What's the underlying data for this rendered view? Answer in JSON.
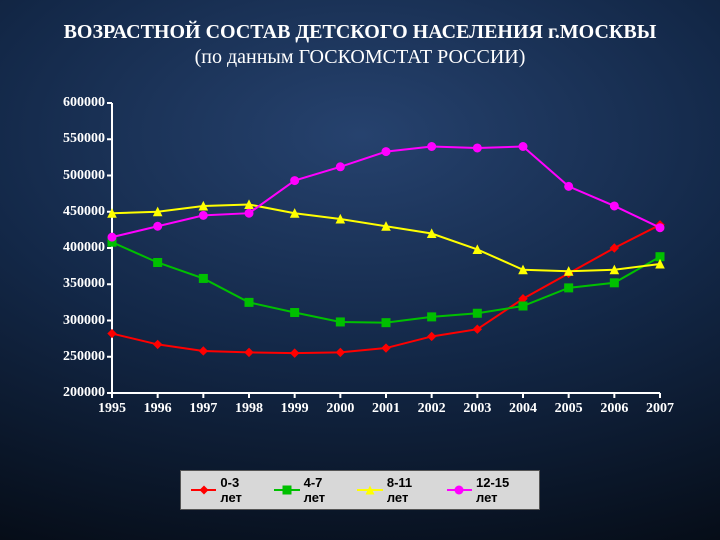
{
  "title_line1": "ВОЗРАСТНОЙ СОСТАВ ДЕТСКОГО НАСЕЛЕНИЯ г.МОСКВЫ",
  "title_line2": "(по данным ГОСКОМСТАТ РОССИИ)",
  "chart": {
    "type": "line",
    "background_color": "transparent",
    "axis_color": "#ffffff",
    "grid_on": false,
    "xlim": [
      1995,
      2007
    ],
    "ylim": [
      200000,
      600000
    ],
    "ytick_step": 50000,
    "y_ticks": [
      200000,
      250000,
      300000,
      350000,
      400000,
      450000,
      500000,
      550000,
      600000
    ],
    "x_ticks": [
      1995,
      1996,
      1997,
      1998,
      1999,
      2000,
      2001,
      2002,
      2003,
      2004,
      2005,
      2006,
      2007
    ],
    "label_color": "#ffffff",
    "label_fontsize": 14,
    "line_width": 2,
    "marker_size": 8,
    "series": [
      {
        "name": "0-3 лет",
        "color": "#ff0000",
        "marker": "diamond",
        "x": [
          1995,
          1996,
          1997,
          1998,
          1999,
          2000,
          2001,
          2002,
          2003,
          2004,
          2005,
          2006,
          2007
        ],
        "y": [
          282000,
          267000,
          258000,
          256000,
          255000,
          256000,
          262000,
          278000,
          288000,
          330000,
          365000,
          400000,
          432000
        ]
      },
      {
        "name": "4-7 лет",
        "color": "#00c000",
        "marker": "square",
        "x": [
          1995,
          1996,
          1997,
          1998,
          1999,
          2000,
          2001,
          2002,
          2003,
          2004,
          2005,
          2006,
          2007
        ],
        "y": [
          408000,
          380000,
          358000,
          325000,
          311000,
          298000,
          297000,
          305000,
          310000,
          320000,
          345000,
          352000,
          388000
        ]
      },
      {
        "name": "8-11 лет",
        "color": "#ffff00",
        "marker": "triangle",
        "x": [
          1995,
          1996,
          1997,
          1998,
          1999,
          2000,
          2001,
          2002,
          2003,
          2004,
          2005,
          2006,
          2007
        ],
        "y": [
          448000,
          450000,
          458000,
          460000,
          448000,
          440000,
          430000,
          420000,
          398000,
          370000,
          368000,
          370000,
          378000
        ]
      },
      {
        "name": "12-15 лет",
        "color": "#ff00ff",
        "marker": "circle",
        "x": [
          1995,
          1996,
          1997,
          1998,
          1999,
          2000,
          2001,
          2002,
          2003,
          2004,
          2005,
          2006,
          2007
        ],
        "y": [
          415000,
          430000,
          445000,
          448000,
          493000,
          512000,
          533000,
          540000,
          538000,
          540000,
          485000,
          458000,
          428000
        ]
      }
    ]
  },
  "legend": {
    "background": "#d8d8d8",
    "border_color": "#555555",
    "items": [
      {
        "label": "0-3 лет",
        "color": "#ff0000",
        "marker": "diamond"
      },
      {
        "label": "4-7 лет",
        "color": "#00c000",
        "marker": "square"
      },
      {
        "label": "8-11 лет",
        "color": "#ffff00",
        "marker": "triangle"
      },
      {
        "label": "12-15 лет",
        "color": "#ff00ff",
        "marker": "circle"
      }
    ]
  }
}
